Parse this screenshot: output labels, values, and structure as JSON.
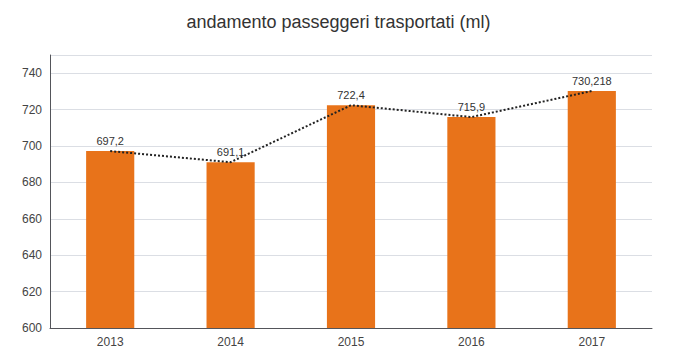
{
  "chart_data": {
    "type": "bar",
    "title": "andamento passeggeri trasportati (ml)",
    "categories": [
      "2013",
      "2014",
      "2015",
      "2016",
      "2017"
    ],
    "series": [
      {
        "type": "bar",
        "color": "#E8731A",
        "values": [
          697.2,
          691.1,
          722.4,
          715.9,
          730.218
        ],
        "value_labels": [
          "697,2",
          "691,1",
          "722,4",
          "715,9",
          "730,218"
        ]
      },
      {
        "type": "line",
        "color": "#222222",
        "line_style": "dotted",
        "marker": "none",
        "values": [
          697.2,
          691.1,
          722.4,
          715.9,
          730.218
        ]
      }
    ],
    "ylim": [
      600,
      750
    ],
    "yticks": [
      600,
      620,
      640,
      660,
      680,
      700,
      720,
      740
    ],
    "grid": true,
    "data_labels": true
  }
}
